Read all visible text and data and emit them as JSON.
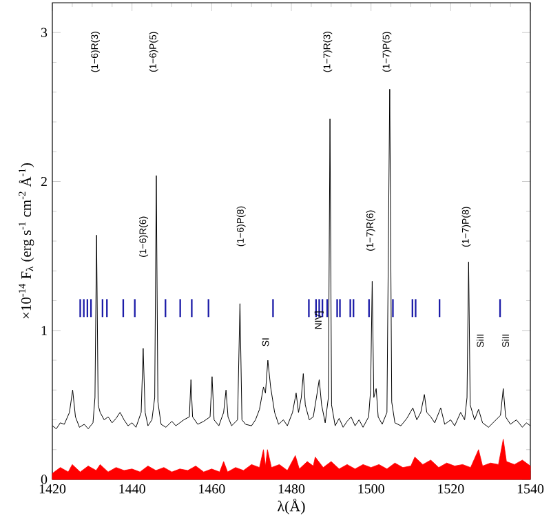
{
  "chart_data": {
    "type": "line",
    "xlabel": "λ(Å)",
    "ylabel": "×10$^{-14}$ F$_{λ}$ (erg s$^{-1}$ cm$^{-2}$ Å$^{-1}$)",
    "xlim": [
      1420,
      1540
    ],
    "ylim": [
      0,
      3.2
    ],
    "xticks": [
      1420,
      1440,
      1460,
      1480,
      1500,
      1520,
      1540
    ],
    "yticks": [
      0,
      1,
      2,
      3
    ],
    "series": [
      {
        "type": "area",
        "color": "#ff0000",
        "x": [
          1420,
          1422,
          1424,
          1425,
          1427,
          1429,
          1431,
          1432,
          1434,
          1436,
          1438,
          1440,
          1442,
          1444,
          1446,
          1448,
          1450,
          1452,
          1454,
          1456,
          1458,
          1460,
          1462,
          1463,
          1464,
          1466,
          1468,
          1470,
          1472,
          1473,
          1473.5,
          1474,
          1475,
          1477,
          1479,
          1481,
          1482,
          1484,
          1485.5,
          1486,
          1488,
          1490,
          1492,
          1494,
          1496,
          1498,
          1500,
          1502,
          1504,
          1506,
          1508,
          1510,
          1511,
          1513,
          1515,
          1517,
          1519,
          1521,
          1523,
          1525,
          1527,
          1528,
          1530,
          1532,
          1533.2,
          1534,
          1536,
          1538,
          1540
        ],
        "values": [
          0.04,
          0.08,
          0.05,
          0.1,
          0.05,
          0.09,
          0.06,
          0.1,
          0.05,
          0.08,
          0.06,
          0.07,
          0.05,
          0.09,
          0.06,
          0.08,
          0.05,
          0.07,
          0.06,
          0.09,
          0.05,
          0.07,
          0.05,
          0.12,
          0.05,
          0.08,
          0.06,
          0.1,
          0.08,
          0.2,
          0.09,
          0.2,
          0.08,
          0.1,
          0.06,
          0.16,
          0.07,
          0.12,
          0.09,
          0.15,
          0.08,
          0.12,
          0.07,
          0.1,
          0.07,
          0.1,
          0.08,
          0.1,
          0.07,
          0.11,
          0.08,
          0.09,
          0.15,
          0.1,
          0.13,
          0.08,
          0.11,
          0.09,
          0.1,
          0.08,
          0.2,
          0.09,
          0.11,
          0.1,
          0.27,
          0.12,
          0.1,
          0.13,
          0.09
        ]
      },
      {
        "color": "#000000",
        "x": [
          1420,
          1421,
          1422,
          1423,
          1424.3,
          1425.1,
          1425.8,
          1426.8,
          1428,
          1429,
          1430.2,
          1430.7,
          1431.1,
          1431.5,
          1432,
          1433,
          1434,
          1435,
          1436,
          1437,
          1438,
          1439,
          1440,
          1441,
          1442.3,
          1442.8,
          1443.3,
          1444,
          1445,
          1445.7,
          1446.1,
          1446.5,
          1447.3,
          1448.5,
          1450,
          1451,
          1452,
          1453,
          1454.4,
          1454.8,
          1455.2,
          1456.5,
          1458,
          1459.6,
          1460.1,
          1460.6,
          1461.8,
          1463,
          1463.6,
          1464.1,
          1465,
          1466.5,
          1467.1,
          1467.6,
          1468.5,
          1470,
          1471,
          1472,
          1473,
          1473.5,
          1474.1,
          1474.8,
          1475.8,
          1476.8,
          1478,
          1479,
          1480.3,
          1481.2,
          1481.8,
          1482.5,
          1483.0,
          1483.5,
          1484.5,
          1485.5,
          1486.3,
          1487.0,
          1487.6,
          1488.5,
          1489.3,
          1489.7,
          1490.1,
          1491,
          1492,
          1493,
          1494,
          1495,
          1496,
          1497,
          1498,
          1499.4,
          1499.9,
          1500.3,
          1500.7,
          1501.3,
          1501.8,
          1502.8,
          1504,
          1504.7,
          1505.2,
          1506,
          1507.5,
          1509,
          1510.5,
          1511.5,
          1512.5,
          1513.4,
          1514,
          1515,
          1516,
          1517.5,
          1518.5,
          1520,
          1521,
          1522.5,
          1523.5,
          1524.1,
          1524.5,
          1524.9,
          1526,
          1527,
          1528,
          1529.5,
          1531,
          1532.5,
          1533.2,
          1533.8,
          1535,
          1536.5,
          1538,
          1539,
          1540
        ],
        "values": [
          0.36,
          0.34,
          0.38,
          0.37,
          0.45,
          0.6,
          0.42,
          0.35,
          0.37,
          0.34,
          0.38,
          0.55,
          1.64,
          0.5,
          0.45,
          0.4,
          0.42,
          0.38,
          0.41,
          0.45,
          0.4,
          0.36,
          0.38,
          0.35,
          0.45,
          0.88,
          0.45,
          0.36,
          0.4,
          0.55,
          2.04,
          0.52,
          0.37,
          0.35,
          0.39,
          0.36,
          0.38,
          0.4,
          0.42,
          0.67,
          0.42,
          0.37,
          0.39,
          0.42,
          0.69,
          0.4,
          0.36,
          0.45,
          0.6,
          0.42,
          0.36,
          0.4,
          1.18,
          0.4,
          0.37,
          0.36,
          0.4,
          0.47,
          0.62,
          0.58,
          0.8,
          0.62,
          0.45,
          0.37,
          0.4,
          0.36,
          0.45,
          0.58,
          0.45,
          0.55,
          0.71,
          0.5,
          0.4,
          0.42,
          0.55,
          0.67,
          0.5,
          0.38,
          0.55,
          2.42,
          0.5,
          0.36,
          0.41,
          0.35,
          0.39,
          0.42,
          0.36,
          0.4,
          0.35,
          0.42,
          0.6,
          1.33,
          0.55,
          0.61,
          0.42,
          0.37,
          0.45,
          2.62,
          0.52,
          0.38,
          0.36,
          0.41,
          0.48,
          0.4,
          0.45,
          0.57,
          0.45,
          0.42,
          0.38,
          0.48,
          0.37,
          0.4,
          0.36,
          0.45,
          0.4,
          0.55,
          1.46,
          0.5,
          0.4,
          0.47,
          0.38,
          0.35,
          0.39,
          0.43,
          0.61,
          0.42,
          0.37,
          0.4,
          0.35,
          0.38,
          0.36
        ]
      },
      {
        "type": "bar",
        "color": "#1c1ca8",
        "x": [
          1427.0,
          1427.9,
          1428.8,
          1429.7,
          1432.6,
          1433.7,
          1437.8,
          1440.7,
          1448.4,
          1452.1,
          1455.0,
          1459.2,
          1475.4,
          1484.4,
          1486.2,
          1487.0,
          1487.8,
          1489.0,
          1491.5,
          1492.2,
          1494.8,
          1495.6,
          1499.5,
          1505.5,
          1510.4,
          1511.2,
          1517.2,
          1532.4
        ],
        "base": [
          1.09,
          1.09,
          1.09,
          1.09,
          1.09,
          1.09,
          1.09,
          1.09,
          1.09,
          1.09,
          1.09,
          1.09,
          1.09,
          1.09,
          1.09,
          1.09,
          1.09,
          1.09,
          1.09,
          1.09,
          1.09,
          1.09,
          1.09,
          1.09,
          1.09,
          1.09,
          1.09,
          1.09
        ],
        "values": [
          0.12,
          0.12,
          0.12,
          0.12,
          0.12,
          0.12,
          0.12,
          0.12,
          0.12,
          0.12,
          0.12,
          0.12,
          0.12,
          0.12,
          0.12,
          0.12,
          0.12,
          0.12,
          0.12,
          0.12,
          0.12,
          0.12,
          0.12,
          0.12,
          0.12,
          0.12,
          0.12,
          0.12
        ]
      }
    ],
    "annotations": [
      "(1−6)R(3)",
      "(1−6)P(5)",
      "(1−6)R(6)",
      "(1−6)P(8)",
      "SI",
      "NIV]",
      "(1−7)R(3)",
      "(1−7)P(5)",
      "(1−7)R(6)",
      "(1−7)P(8)",
      "SiII",
      "SiII"
    ]
  }
}
